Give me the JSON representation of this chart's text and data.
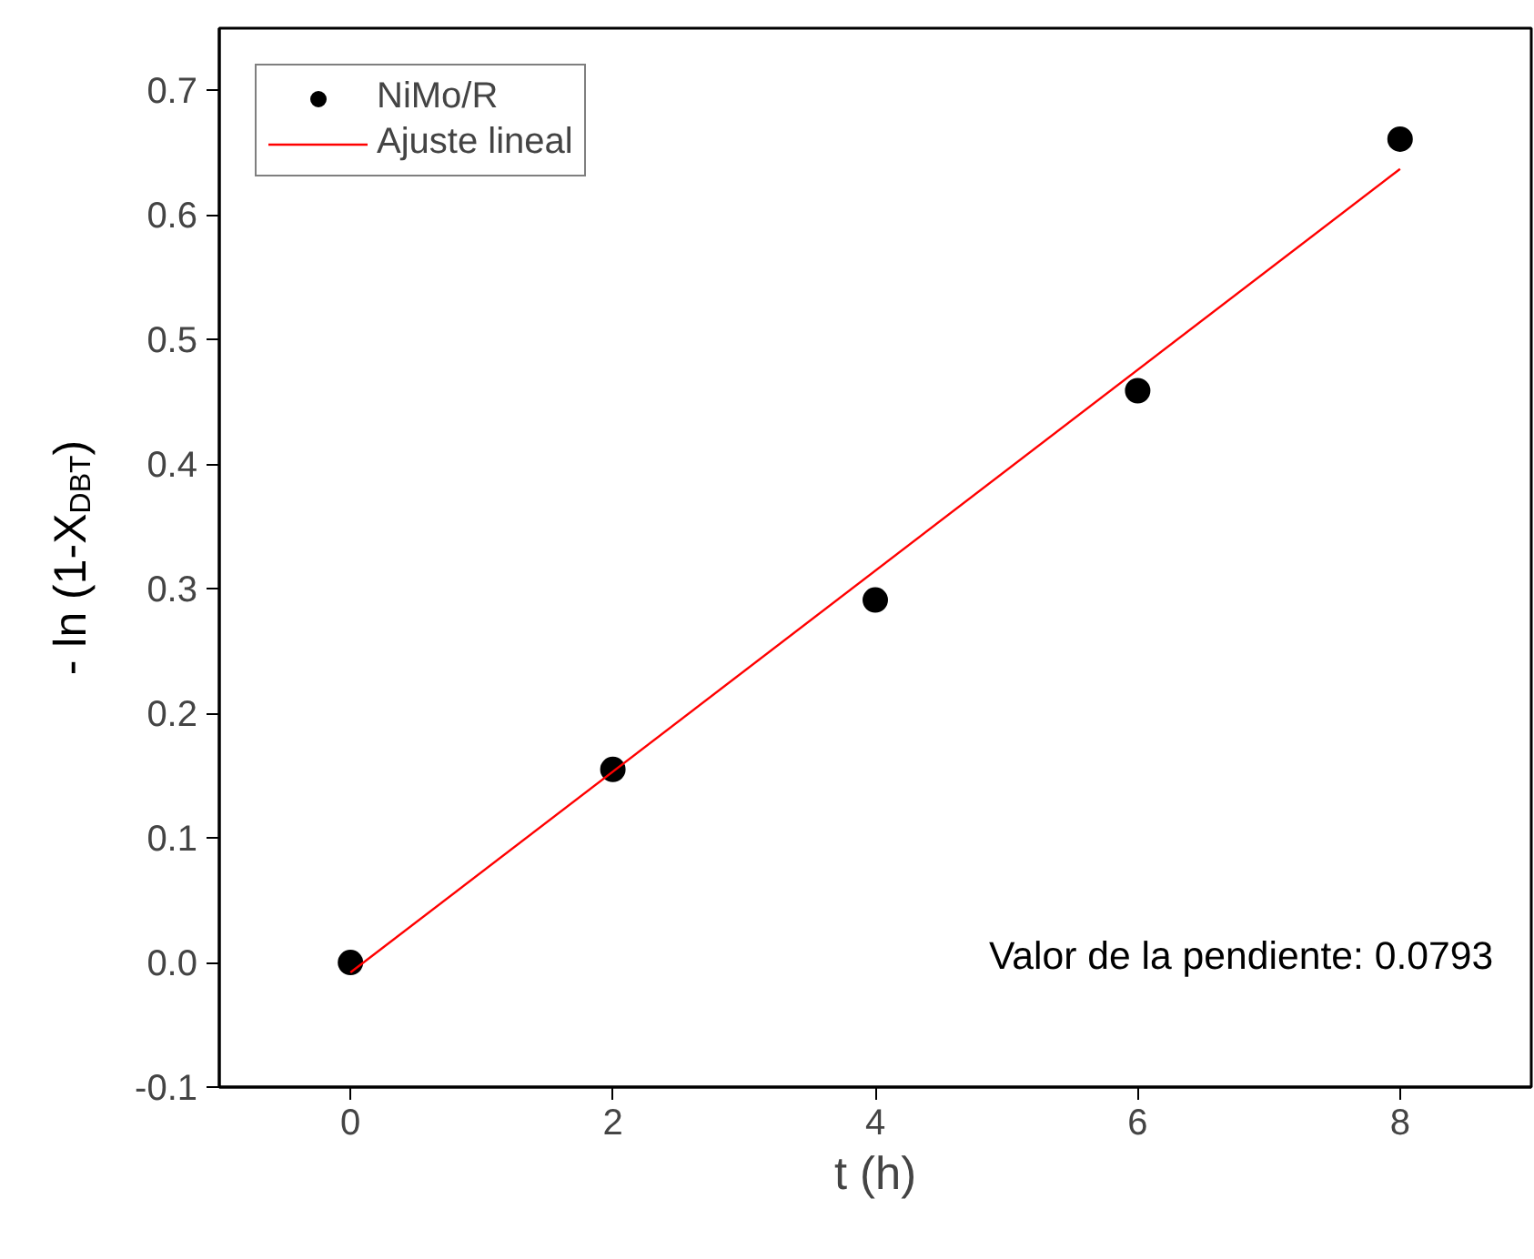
{
  "chart_data": {
    "type": "scatter",
    "xlabel": "t (h)",
    "ylabel": "- ln (1-X$_{DBT}$)",
    "series": [
      {
        "name": "NiMo/R",
        "color": "#000000",
        "marker": "circle",
        "x": [
          0,
          2,
          4,
          6,
          8
        ],
        "values": [
          0.0,
          0.155,
          0.291,
          0.459,
          0.661
        ]
      },
      {
        "name": "Ajuste lineal",
        "type": "line",
        "color": "#ff0000",
        "line_style": "solid",
        "x": [
          0,
          8
        ],
        "values": [
          -0.008,
          0.637
        ]
      }
    ],
    "xlim": [
      -1,
      9
    ],
    "xticks": [
      0,
      2,
      4,
      6,
      8
    ],
    "ylim": [
      -0.1,
      0.75
    ],
    "yticks": [
      {
        "value": -0.1,
        "label": "-0.1"
      },
      {
        "value": 0.0,
        "label": "0.0"
      },
      {
        "value": 0.1,
        "label": "0.1"
      },
      {
        "value": 0.2,
        "label": "0.2"
      },
      {
        "value": 0.3,
        "label": "0.3"
      },
      {
        "value": 0.4,
        "label": "0.4"
      },
      {
        "value": 0.5,
        "label": "0.5"
      },
      {
        "value": 0.6,
        "label": "0.6"
      },
      {
        "value": 0.7,
        "label": "0.7"
      }
    ],
    "grid": false,
    "legend": "top left",
    "annotations": [
      "Valor de la pendiente: 0.0793"
    ]
  }
}
